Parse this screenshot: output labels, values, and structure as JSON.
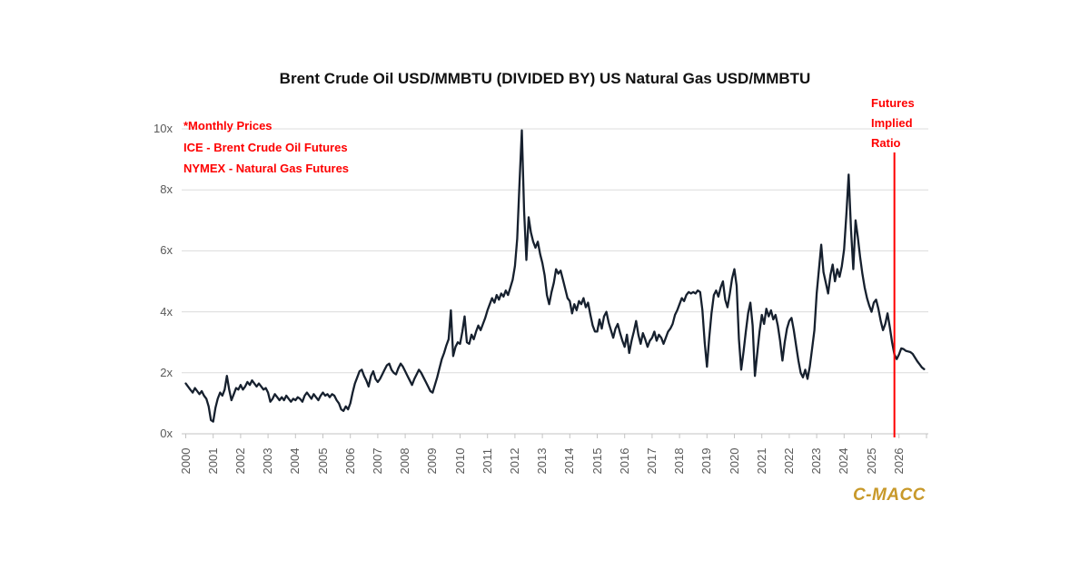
{
  "page": {
    "background": "#ffffff"
  },
  "colors": {
    "accent_red": "#FE0000",
    "series_line": "#16202E",
    "logo_gold": "#C8992A",
    "axis_text": "#595959",
    "gridline": "#DCDCDC",
    "axis_line": "#C3C3C3"
  },
  "annotations": {
    "monthly_note": "*Monthly Prices\nICE - Brent Crude Oil Futures\nNYMEX - Natural Gas Futures",
    "futures_label": "Futures\nImplied\nRatio"
  },
  "branding": {
    "logo_text": "C-MACC"
  },
  "chart_data": {
    "type": "line",
    "title": "Brent Crude Oil USD/MMBTU (DIVIDED BY) US Natural Gas USD/MMBTU",
    "xlabel": "",
    "ylabel": "",
    "x_unit": "monthly",
    "x_start": "2000-01",
    "x_end": "2026-12",
    "x_tick_years": [
      2000,
      2001,
      2002,
      2003,
      2004,
      2005,
      2006,
      2007,
      2008,
      2009,
      2010,
      2011,
      2012,
      2013,
      2014,
      2015,
      2016,
      2017,
      2018,
      2019,
      2020,
      2021,
      2022,
      2023,
      2024,
      2025,
      2026
    ],
    "ylim": [
      0,
      10
    ],
    "ytick_labels": [
      "0x",
      "2x",
      "4x",
      "6x",
      "8x",
      "10x"
    ],
    "grid": "horizontal",
    "legend": "none",
    "futures_boundary": {
      "index": 310,
      "x_date": "2025-11",
      "label": "Futures Implied Ratio"
    },
    "series": [
      {
        "name": "Brent Crude Oil / US Natural Gas price ratio (x)",
        "color": "#16202E",
        "values": [
          1.65,
          1.55,
          1.45,
          1.35,
          1.5,
          1.4,
          1.3,
          1.4,
          1.25,
          1.15,
          0.9,
          0.45,
          0.4,
          0.85,
          1.15,
          1.35,
          1.25,
          1.45,
          1.9,
          1.45,
          1.1,
          1.3,
          1.5,
          1.45,
          1.6,
          1.45,
          1.55,
          1.7,
          1.6,
          1.75,
          1.65,
          1.55,
          1.65,
          1.55,
          1.45,
          1.5,
          1.35,
          1.05,
          1.15,
          1.3,
          1.2,
          1.1,
          1.2,
          1.1,
          1.25,
          1.15,
          1.05,
          1.15,
          1.1,
          1.2,
          1.15,
          1.05,
          1.25,
          1.35,
          1.25,
          1.15,
          1.3,
          1.2,
          1.1,
          1.25,
          1.35,
          1.25,
          1.3,
          1.2,
          1.3,
          1.25,
          1.1,
          1.0,
          0.8,
          0.75,
          0.9,
          0.8,
          1.0,
          1.35,
          1.65,
          1.85,
          2.05,
          2.1,
          1.9,
          1.75,
          1.55,
          1.9,
          2.05,
          1.8,
          1.7,
          1.8,
          1.95,
          2.1,
          2.25,
          2.3,
          2.1,
          2.0,
          1.95,
          2.15,
          2.3,
          2.2,
          2.05,
          1.9,
          1.75,
          1.6,
          1.8,
          1.95,
          2.1,
          2.0,
          1.85,
          1.7,
          1.55,
          1.4,
          1.35,
          1.6,
          1.85,
          2.15,
          2.45,
          2.65,
          2.9,
          3.1,
          4.05,
          2.55,
          2.85,
          3.0,
          2.95,
          3.35,
          3.85,
          3.0,
          2.95,
          3.25,
          3.1,
          3.35,
          3.55,
          3.4,
          3.6,
          3.8,
          4.05,
          4.25,
          4.45,
          4.3,
          4.55,
          4.4,
          4.6,
          4.5,
          4.7,
          4.55,
          4.8,
          5.05,
          5.5,
          6.4,
          8.2,
          9.95,
          7.3,
          5.7,
          7.1,
          6.6,
          6.3,
          6.1,
          6.3,
          5.9,
          5.6,
          5.2,
          4.55,
          4.25,
          4.65,
          4.95,
          5.4,
          5.25,
          5.35,
          5.05,
          4.75,
          4.45,
          4.35,
          3.95,
          4.25,
          4.05,
          4.35,
          4.25,
          4.45,
          4.15,
          4.3,
          3.9,
          3.55,
          3.35,
          3.35,
          3.75,
          3.45,
          3.85,
          4.0,
          3.65,
          3.4,
          3.15,
          3.45,
          3.6,
          3.3,
          3.05,
          2.85,
          3.25,
          2.65,
          3.05,
          3.35,
          3.7,
          3.25,
          2.95,
          3.3,
          3.1,
          2.85,
          3.05,
          3.15,
          3.35,
          3.05,
          3.25,
          3.15,
          2.95,
          3.15,
          3.35,
          3.45,
          3.6,
          3.9,
          4.05,
          4.25,
          4.45,
          4.35,
          4.55,
          4.65,
          4.6,
          4.65,
          4.6,
          4.7,
          4.65,
          4.05,
          3.0,
          2.2,
          3.15,
          3.95,
          4.55,
          4.7,
          4.5,
          4.8,
          5.0,
          4.4,
          4.15,
          4.6,
          5.1,
          5.4,
          4.85,
          3.1,
          2.1,
          2.7,
          3.35,
          3.95,
          4.3,
          3.55,
          1.9,
          2.65,
          3.35,
          3.9,
          3.6,
          4.1,
          3.85,
          4.05,
          3.75,
          3.9,
          3.55,
          3.05,
          2.4,
          3.0,
          3.45,
          3.7,
          3.8,
          3.4,
          2.9,
          2.4,
          2.0,
          1.85,
          2.1,
          1.8,
          2.2,
          2.8,
          3.4,
          4.6,
          5.4,
          6.2,
          5.3,
          4.95,
          4.6,
          5.2,
          5.55,
          5.0,
          5.4,
          5.15,
          5.5,
          6.05,
          7.2,
          8.5,
          6.7,
          5.4,
          7.0,
          6.45,
          5.8,
          5.25,
          4.8,
          4.45,
          4.2,
          4.0,
          4.3,
          4.4,
          4.1,
          3.7,
          3.4,
          3.6,
          3.95,
          3.5,
          3.0,
          2.6,
          2.45,
          2.6,
          2.8,
          2.78,
          2.72,
          2.7,
          2.68,
          2.62,
          2.5,
          2.38,
          2.28,
          2.18,
          2.12
        ]
      }
    ]
  }
}
